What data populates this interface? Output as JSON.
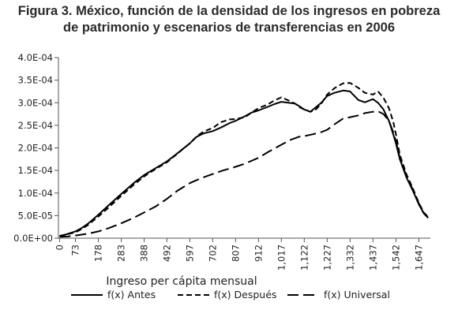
{
  "title": {
    "line1": "Figura 3. México, función de la densidad de los ingresos en pobreza",
    "line2": "de patrimonio y escenarios de transferencias en 2006"
  },
  "chart_data": {
    "type": "line",
    "title": "Figura 3. México, función de la densidad de los ingresos en pobreza de patrimonio y escenarios de transferencias en 2006",
    "xlabel": "Ingreso per cápita mensual",
    "ylabel": "",
    "x_ticks": [
      "0",
      "73",
      "178",
      "283",
      "388",
      "492",
      "597",
      "702",
      "807",
      "912",
      "1,017",
      "1,122",
      "1,227",
      "1,332",
      "1,437",
      "1,542",
      "1,647"
    ],
    "x_tick_values": [
      0,
      73,
      178,
      283,
      388,
      492,
      597,
      702,
      807,
      912,
      1017,
      1122,
      1227,
      1332,
      1437,
      1542,
      1647
    ],
    "xlim": [
      -5,
      1700
    ],
    "y_ticks": [
      "0.0E+00",
      "5.0E-05",
      "1.0E-04",
      "1.5E-04",
      "2.0E-04",
      "2.5E-04",
      "3.0E-04",
      "3.5E-04",
      "4.0E-04"
    ],
    "y_tick_values": [
      0,
      5e-05,
      0.0001,
      0.00015,
      0.0002,
      0.00025,
      0.0003,
      0.00035,
      0.0004
    ],
    "ylim": [
      0,
      0.0004
    ],
    "grid": false,
    "legend_position": "bottom",
    "series": [
      {
        "name": "f(x) Antes",
        "style": "solid",
        "color": "#000000",
        "x": [
          0,
          20,
          40,
          73,
          100,
          130,
          178,
          230,
          283,
          340,
          388,
          440,
          492,
          540,
          597,
          630,
          660,
          702,
          740,
          780,
          807,
          850,
          880,
          912,
          950,
          985,
          1017,
          1050,
          1080,
          1100,
          1122,
          1150,
          1175,
          1200,
          1227,
          1260,
          1300,
          1332,
          1370,
          1400,
          1437,
          1460,
          1485,
          1510,
          1530,
          1542,
          1560,
          1590,
          1620,
          1647,
          1670,
          1690
        ],
        "y": [
          5e-06,
          7e-06,
          1e-05,
          1.5e-05,
          2.2e-05,
          3.2e-05,
          5.2e-05,
          7.5e-05,
          9.8e-05,
          0.000122,
          0.00014,
          0.000155,
          0.00017,
          0.000188,
          0.00021,
          0.000225,
          0.000232,
          0.000237,
          0.000245,
          0.000255,
          0.00026,
          0.00027,
          0.000278,
          0.000283,
          0.00029,
          0.000297,
          0.000302,
          0.0003,
          0.000298,
          0.000292,
          0.000285,
          0.00028,
          0.00029,
          0.0003,
          0.000315,
          0.000322,
          0.000327,
          0.000325,
          0.000306,
          0.000301,
          0.000308,
          0.0003,
          0.000285,
          0.00026,
          0.00023,
          0.00021,
          0.000175,
          0.000135,
          0.000105,
          7.5e-05,
          5.5e-05,
          4.5e-05
        ]
      },
      {
        "name": "f(x) Después",
        "style": "dashed",
        "color": "#000000",
        "x": [
          0,
          20,
          40,
          73,
          100,
          130,
          178,
          230,
          283,
          340,
          388,
          440,
          492,
          540,
          597,
          630,
          660,
          702,
          740,
          780,
          807,
          850,
          880,
          912,
          950,
          985,
          1017,
          1050,
          1080,
          1100,
          1122,
          1150,
          1175,
          1200,
          1227,
          1260,
          1300,
          1332,
          1370,
          1400,
          1437,
          1460,
          1485,
          1510,
          1530,
          1542,
          1560,
          1590,
          1620,
          1647,
          1670,
          1690
        ],
        "y": [
          5e-06,
          7e-06,
          9e-06,
          1.3e-05,
          2e-05,
          2.9e-05,
          4.8e-05,
          7e-05,
          9.4e-05,
          0.000118,
          0.000137,
          0.000153,
          0.000168,
          0.000187,
          0.00021,
          0.000226,
          0.000236,
          0.000244,
          0.000257,
          0.000263,
          0.000264,
          0.000268,
          0.000278,
          0.000288,
          0.000295,
          0.000305,
          0.000312,
          0.000305,
          0.000298,
          0.00029,
          0.000285,
          0.00028,
          0.000285,
          0.000298,
          0.000318,
          0.000332,
          0.000343,
          0.000344,
          0.000333,
          0.000322,
          0.000318,
          0.000325,
          0.000311,
          0.000288,
          0.000258,
          0.00023,
          0.000185,
          0.000142,
          0.00011,
          7.8e-05,
          5.7e-05,
          4.7e-05
        ]
      },
      {
        "name": "f(x) Universal",
        "style": "long-dash",
        "color": "#000000",
        "x": [
          0,
          40,
          73,
          130,
          178,
          230,
          283,
          340,
          388,
          440,
          492,
          540,
          597,
          650,
          702,
          750,
          807,
          850,
          912,
          960,
          1017,
          1060,
          1100,
          1122,
          1160,
          1200,
          1227,
          1260,
          1300,
          1332,
          1370,
          1400,
          1437,
          1460,
          1485,
          1510,
          1530,
          1542,
          1560,
          1590,
          1620,
          1647,
          1670,
          1690
        ],
        "y": [
          3e-06,
          4e-06,
          6e-06,
          1e-05,
          1.5e-05,
          2.3e-05,
          3.3e-05,
          4.5e-05,
          5.7e-05,
          7e-05,
          8.7e-05,
          0.000105,
          0.000122,
          0.000133,
          0.000142,
          0.00015,
          0.000158,
          0.000165,
          0.000178,
          0.000192,
          0.000207,
          0.000218,
          0.000225,
          0.000226,
          0.00023,
          0.000235,
          0.00024,
          0.000252,
          0.000265,
          0.000268,
          0.000272,
          0.000277,
          0.00028,
          0.000281,
          0.000275,
          0.00026,
          0.000235,
          0.000215,
          0.000178,
          0.000138,
          0.000107,
          7.7e-05,
          5.5e-05,
          4.5e-05
        ]
      }
    ]
  }
}
